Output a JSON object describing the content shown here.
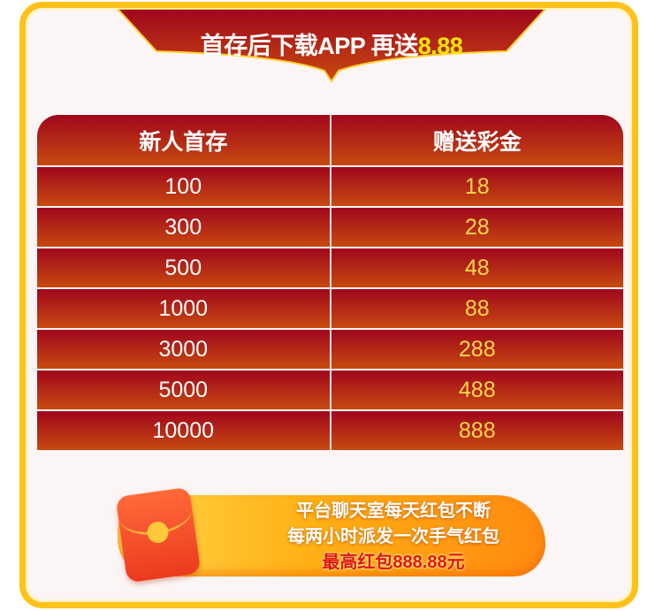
{
  "banner": {
    "title": "首存后下载APP 再送",
    "highlight": "8.88"
  },
  "table": {
    "headers": [
      "新人首存",
      "赠送彩金"
    ],
    "rows": [
      [
        "100",
        "18"
      ],
      [
        "300",
        "28"
      ],
      [
        "500",
        "48"
      ],
      [
        "1000",
        "88"
      ],
      [
        "3000",
        "288"
      ],
      [
        "5000",
        "488"
      ],
      [
        "10000",
        "888"
      ]
    ]
  },
  "promo": {
    "line1": "平台聊天室每天红包不断",
    "line2": "每两小时派发一次手气红包",
    "line3": "最高红包888.88元",
    "icon": "red-envelope-icon"
  },
  "colors": {
    "frame": "#ffc21a",
    "red": "#a0061c",
    "gold": "#ffd94a"
  }
}
